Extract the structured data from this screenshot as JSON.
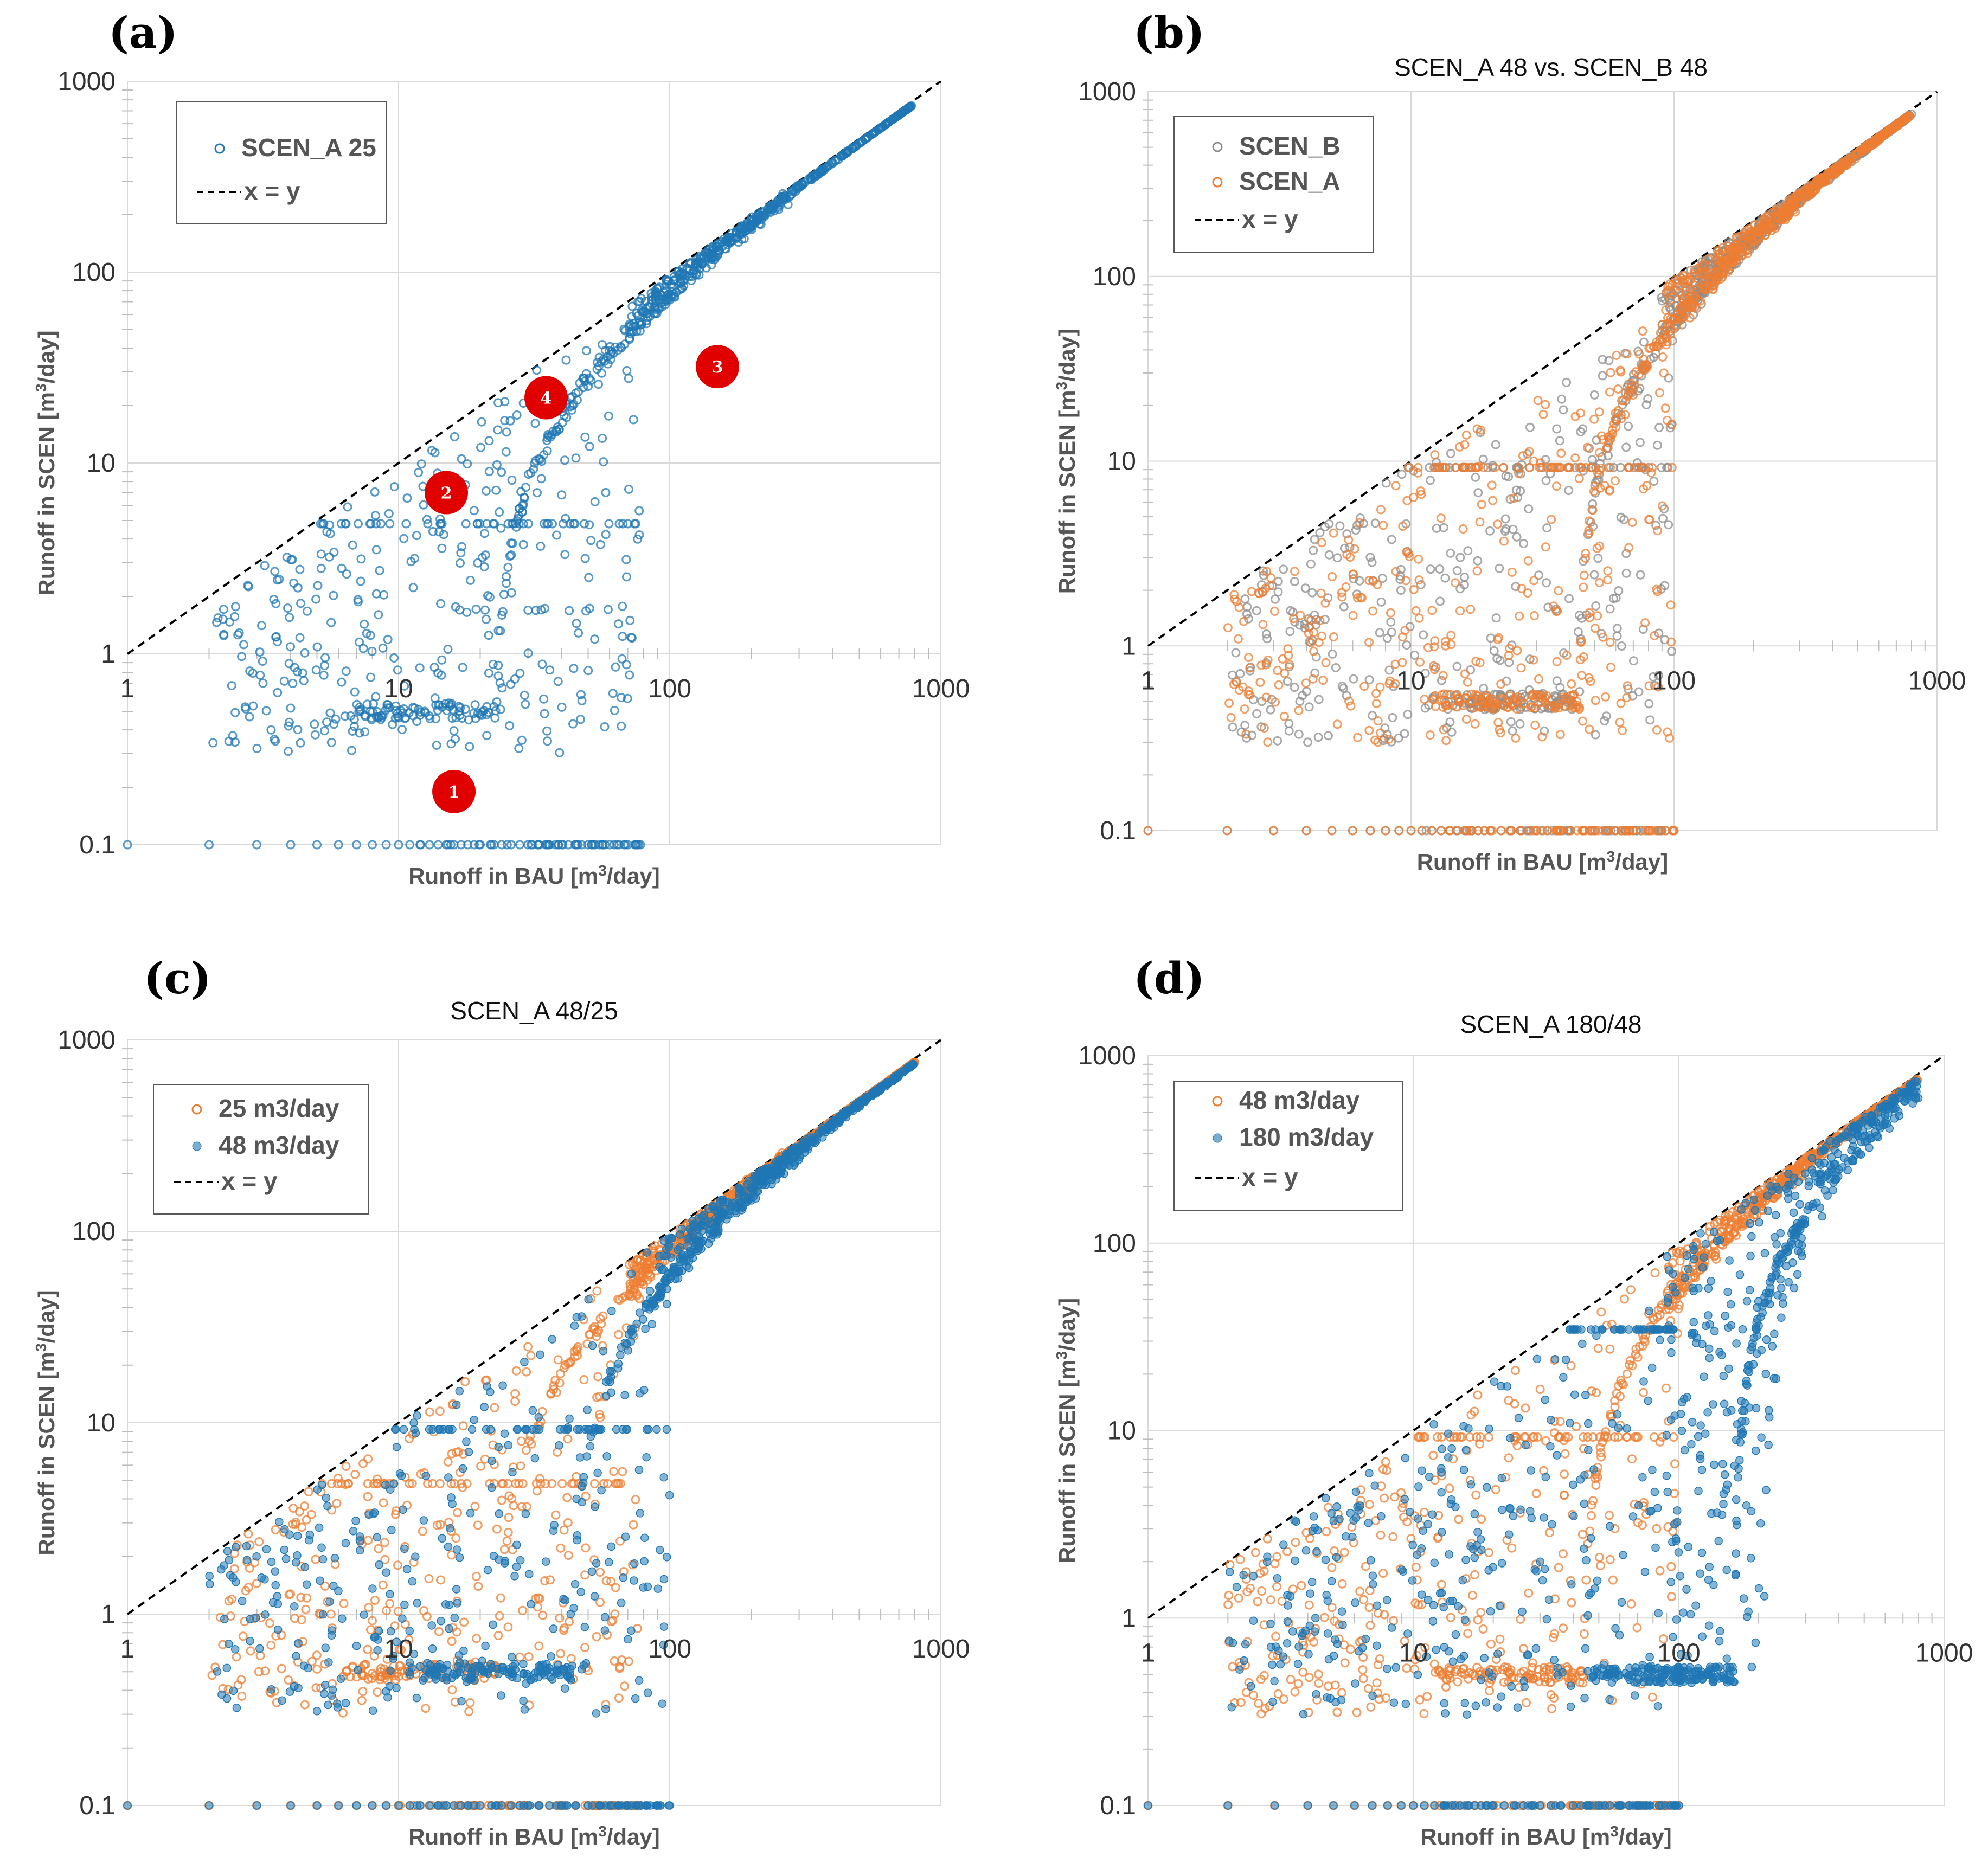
{
  "colors": {
    "blue": "#1f77b4",
    "orange": "#ed7d31",
    "gray": "#8c8c8c",
    "annotation": "#e00000",
    "identity": "#000000"
  },
  "chart_data": [
    {
      "id": "a",
      "panel_label": "(a)",
      "title": "",
      "type": "scatter",
      "xscale": "log",
      "yscale": "log",
      "xlim": [
        1,
        1000
      ],
      "ylim": [
        0.1,
        1000
      ],
      "xticks": [
        "1",
        "10",
        "100",
        "1000"
      ],
      "yticks": [
        "0.1",
        "1",
        "10",
        "100",
        "1000"
      ],
      "xlabel_prefix": "Runoff in BAU [m",
      "xlabel_sup": "3",
      "xlabel_suffix": "/day]",
      "ylabel_prefix": "Runoff in SCEN [m",
      "ylabel_sup": "3",
      "ylabel_suffix": "/day]",
      "legend_position": "top-left",
      "series": [
        {
          "name": "SCEN_A 25",
          "color": "blue",
          "marker": "open",
          "cap": 25
        }
      ],
      "identity_line": {
        "name": "x = y"
      },
      "annotations": [
        {
          "label": "1",
          "x": 16,
          "y": 0.19
        },
        {
          "label": "2",
          "x": 15,
          "y": 7.0
        },
        {
          "label": "3",
          "x": 150,
          "y": 32
        },
        {
          "label": "4",
          "x": 35,
          "y": 22
        }
      ]
    },
    {
      "id": "b",
      "panel_label": "(b)",
      "title": "SCEN_A  48 vs. SCEN_B  48",
      "type": "scatter",
      "xscale": "log",
      "yscale": "log",
      "xlim": [
        1,
        1000
      ],
      "ylim": [
        0.1,
        1000
      ],
      "xticks": [
        "1",
        "10",
        "100",
        "1000"
      ],
      "yticks": [
        "0.1",
        "1",
        "10",
        "100",
        "1000"
      ],
      "xlabel_prefix": "Runoff in BAU [m",
      "xlabel_sup": "3",
      "xlabel_suffix": "/day]",
      "ylabel_prefix": "Runoff in SCEN [m",
      "ylabel_sup": "3",
      "ylabel_suffix": "/day]",
      "legend_position": "top-left",
      "series": [
        {
          "name": "SCEN_B",
          "color": "gray",
          "marker": "open",
          "cap": 48
        },
        {
          "name": "SCEN_A",
          "color": "orange",
          "marker": "open",
          "cap": 48
        }
      ],
      "identity_line": {
        "name": "x = y"
      },
      "annotations": []
    },
    {
      "id": "c",
      "panel_label": "(c)",
      "title": "SCEN_A 48/25",
      "type": "scatter",
      "xscale": "log",
      "yscale": "log",
      "xlim": [
        1,
        1000
      ],
      "ylim": [
        0.1,
        1000
      ],
      "xticks": [
        "1",
        "10",
        "100",
        "1000"
      ],
      "yticks": [
        "0.1",
        "1",
        "10",
        "100",
        "1000"
      ],
      "xlabel_prefix": "Runoff in BAU [m",
      "xlabel_sup": "3",
      "xlabel_suffix": "/day]",
      "ylabel_prefix": "Runoff in SCEN [m",
      "ylabel_sup": "3",
      "ylabel_suffix": "/day]",
      "legend_position": "top-left",
      "series": [
        {
          "name": "25 m3/day",
          "color": "orange",
          "marker": "open",
          "cap": 25
        },
        {
          "name": "48 m3/day",
          "color": "blue",
          "marker": "filled",
          "cap": 48
        }
      ],
      "identity_line": {
        "name": "x = y"
      },
      "annotations": []
    },
    {
      "id": "d",
      "panel_label": "(d)",
      "title": "SCEN_A 180/48",
      "type": "scatter",
      "xscale": "log",
      "yscale": "log",
      "xlim": [
        1,
        1000
      ],
      "ylim": [
        0.1,
        1000
      ],
      "xticks": [
        "1",
        "10",
        "100",
        "1000"
      ],
      "yticks": [
        "0.1",
        "1",
        "10",
        "100",
        "1000"
      ],
      "xlabel_prefix": "Runoff in BAU [m",
      "xlabel_sup": "3",
      "xlabel_suffix": "/day]",
      "ylabel_prefix": "Runoff in SCEN [m",
      "ylabel_sup": "3",
      "ylabel_suffix": "/day]",
      "legend_position": "top-left",
      "series": [
        {
          "name": "48 m3/day",
          "color": "orange",
          "marker": "open",
          "cap": 48
        },
        {
          "name": "180 m3/day",
          "color": "blue",
          "marker": "filled",
          "cap": 180
        }
      ],
      "identity_line": {
        "name": "x = y"
      },
      "annotations": []
    }
  ]
}
